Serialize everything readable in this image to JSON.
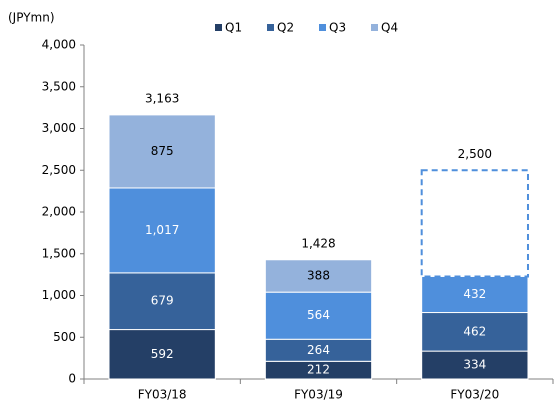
{
  "chart_data": {
    "type": "stacked_bar",
    "y_label": "(JPYmn)",
    "categories": [
      "FY03/18",
      "FY03/19",
      "FY03/20"
    ],
    "series": [
      {
        "name": "Q1",
        "color": "#243f66",
        "values": [
          592,
          212,
          334
        ]
      },
      {
        "name": "Q2",
        "color": "#36629a",
        "values": [
          679,
          264,
          462
        ]
      },
      {
        "name": "Q3",
        "color": "#4f8fdc",
        "values": [
          1017,
          564,
          432
        ],
        "value_labels": [
          "1,017",
          "564",
          "432"
        ]
      },
      {
        "name": "Q4",
        "color": "#94b2dc",
        "values": [
          875,
          388,
          null
        ]
      }
    ],
    "totals": {
      "values": [
        3163,
        1428,
        2500
      ],
      "value_labels": [
        "3,163",
        "1,428",
        "2,500"
      ]
    },
    "ylim": [
      0,
      4000
    ],
    "yticks": [
      0,
      500,
      {
        "value": 1000,
        "label": "1,000"
      },
      {
        "value": 1500,
        "label": "1,500"
      },
      {
        "value": 2000,
        "label": "2,000"
      },
      {
        "value": 2500,
        "label": "2,500"
      },
      {
        "value": 3000,
        "label": "3,000"
      },
      {
        "value": 3500,
        "label": "3,500"
      },
      {
        "value": 4000,
        "label": "4,000"
      }
    ],
    "grid": false
  }
}
